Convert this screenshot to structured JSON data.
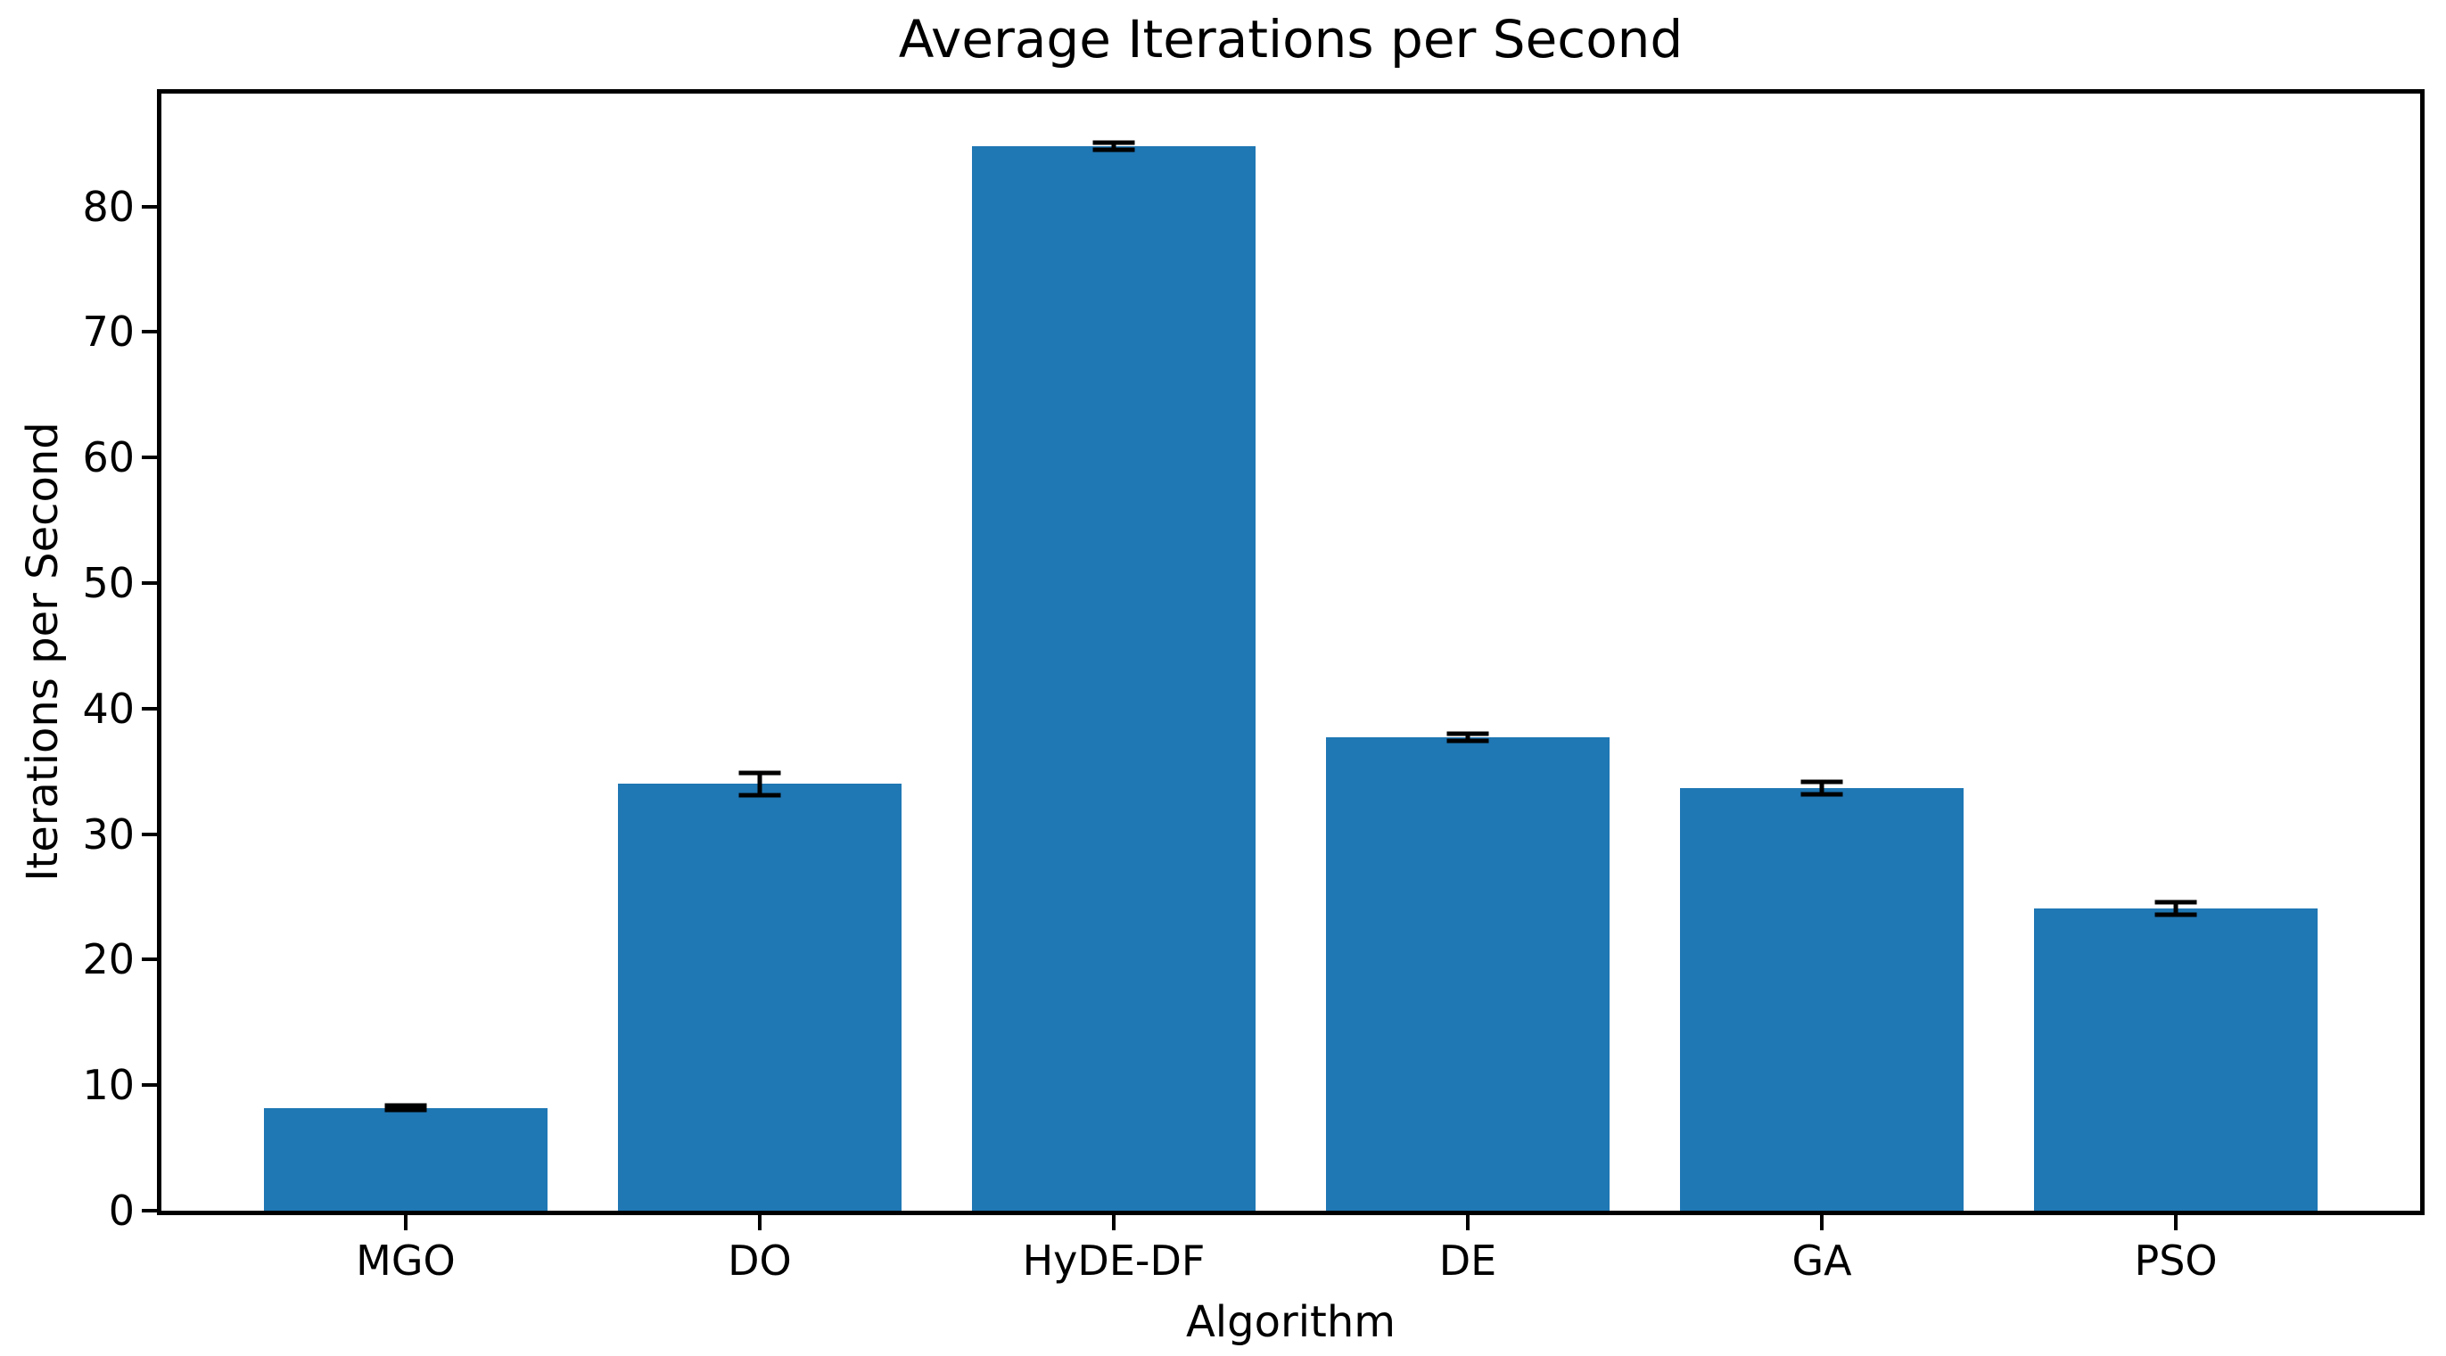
{
  "chart_data": {
    "type": "bar",
    "title": "Average Iterations per Second",
    "xlabel": "Algorithm",
    "ylabel": "Iterations per Second",
    "categories": [
      "MGO",
      "DO",
      "HyDE-DF",
      "DE",
      "GA",
      "PSO"
    ],
    "values": [
      8.2,
      34.0,
      84.8,
      37.7,
      33.7,
      24.1
    ],
    "errors": [
      0.2,
      0.9,
      0.3,
      0.3,
      0.5,
      0.5
    ],
    "ylim": [
      0,
      89
    ],
    "yticks": [
      0,
      10,
      20,
      30,
      40,
      50,
      60,
      70,
      80
    ],
    "bar_color": "#1f77b4",
    "error_color": "#000000",
    "axis_color": "#000000",
    "background_color": "#ffffff",
    "grid": false,
    "legend_position": "none",
    "error_bar_style": "caps"
  }
}
